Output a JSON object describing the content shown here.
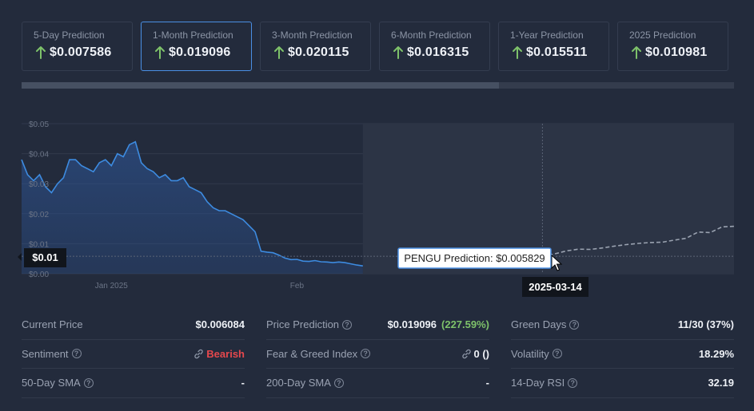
{
  "cards": [
    {
      "label": "5-Day Prediction",
      "value": "$0.007586"
    },
    {
      "label": "1-Month Prediction",
      "value": "$0.019096",
      "active": true
    },
    {
      "label": "3-Month Prediction",
      "value": "$0.020115"
    },
    {
      "label": "6-Month Prediction",
      "value": "$0.016315"
    },
    {
      "label": "1-Year Prediction",
      "value": "$0.015511"
    },
    {
      "label": "2025 Prediction",
      "value": "$0.010981"
    }
  ],
  "progress_fraction": 0.67,
  "colors": {
    "up_arrow": "#7ec26a",
    "line": "#3d8be0",
    "prediction_line": "#9aa2b0",
    "bearish": "#e5484d",
    "active_border": "#4a8fe4"
  },
  "chart_data": {
    "type": "line",
    "y_ticks": [
      "$0.05",
      "$0.04",
      "$0.03",
      "$0.02",
      "$0.01",
      "$0.00"
    ],
    "ylim": [
      0,
      0.05
    ],
    "x_tick_labels": [
      "Jan 2025",
      "Feb"
    ],
    "series": [
      {
        "kind": "historical",
        "x": [
          "2024-12-17",
          "2024-12-18",
          "2024-12-19",
          "2024-12-20",
          "2024-12-21",
          "2024-12-22",
          "2024-12-23",
          "2024-12-24",
          "2024-12-25",
          "2024-12-26",
          "2024-12-27",
          "2024-12-28",
          "2024-12-29",
          "2024-12-30",
          "2024-12-31",
          "2025-01-01",
          "2025-01-02",
          "2025-01-03",
          "2025-01-04",
          "2025-01-05",
          "2025-01-06",
          "2025-01-07",
          "2025-01-08",
          "2025-01-09",
          "2025-01-10",
          "2025-01-11",
          "2025-01-12",
          "2025-01-13",
          "2025-01-14",
          "2025-01-15",
          "2025-01-16",
          "2025-01-17",
          "2025-01-18",
          "2025-01-19",
          "2025-01-20",
          "2025-01-21",
          "2025-01-22",
          "2025-01-23",
          "2025-01-24",
          "2025-01-25",
          "2025-01-26",
          "2025-01-27",
          "2025-01-28",
          "2025-01-29",
          "2025-01-30",
          "2025-01-31",
          "2025-02-01",
          "2025-02-02",
          "2025-02-03",
          "2025-02-04",
          "2025-02-05",
          "2025-02-06",
          "2025-02-07",
          "2025-02-08",
          "2025-02-09",
          "2025-02-10",
          "2025-02-11",
          "2025-02-12"
        ],
        "values": [
          0.038,
          0.033,
          0.031,
          0.033,
          0.029,
          0.027,
          0.03,
          0.032,
          0.038,
          0.038,
          0.036,
          0.035,
          0.034,
          0.037,
          0.038,
          0.036,
          0.04,
          0.039,
          0.043,
          0.044,
          0.037,
          0.035,
          0.034,
          0.032,
          0.033,
          0.031,
          0.031,
          0.032,
          0.029,
          0.028,
          0.027,
          0.024,
          0.022,
          0.021,
          0.021,
          0.02,
          0.019,
          0.018,
          0.016,
          0.014,
          0.0075,
          0.0072,
          0.007,
          0.0062,
          0.0052,
          0.0047,
          0.0048,
          0.0042,
          0.0041,
          0.0044,
          0.004,
          0.0039,
          0.0037,
          0.0039,
          0.0037,
          0.0033,
          0.0029,
          0.0026
        ]
      },
      {
        "kind": "prediction",
        "x": [
          "2025-03-14",
          "2025-03-16",
          "2025-03-18",
          "2025-03-20",
          "2025-03-22",
          "2025-03-24",
          "2025-03-26",
          "2025-03-28",
          "2025-03-30",
          "2025-04-01",
          "2025-04-03",
          "2025-04-05",
          "2025-04-07",
          "2025-04-09",
          "2025-04-11",
          "2025-04-13",
          "2025-04-15"
        ],
        "values": [
          0.005829,
          0.0066,
          0.0076,
          0.0082,
          0.0081,
          0.0086,
          0.0092,
          0.0097,
          0.0101,
          0.0104,
          0.0105,
          0.0112,
          0.0118,
          0.0139,
          0.0137,
          0.0156,
          0.0158
        ]
      }
    ],
    "price_marker_label": "$0.01",
    "tooltip": "PENGU Prediction: $0.005829",
    "crosshair_date_label": "2025-03-14"
  },
  "stats": [
    {
      "label": "Current Price",
      "value": "$0.006084",
      "help": false
    },
    {
      "label": "Price Prediction",
      "value": "$0.019096",
      "extra": "(227.59%)",
      "help": true
    },
    {
      "label": "Green Days",
      "value": "11/30 (37%)",
      "help": true,
      "value_class": "red"
    },
    {
      "label": "Sentiment",
      "value": "Bearish",
      "help": true,
      "value_class": "red",
      "icon": "link-icon"
    },
    {
      "label": "Fear & Greed Index",
      "value": "0 ()",
      "help": true,
      "icon": "link-icon"
    },
    {
      "label": "Volatility",
      "value": "18.29%",
      "help": true
    },
    {
      "label": "50-Day SMA",
      "value": "-",
      "help": true
    },
    {
      "label": "200-Day SMA",
      "value": "-",
      "help": true
    },
    {
      "label": "14-Day RSI",
      "value": "32.19",
      "help": true
    }
  ],
  "help_glyph": "?"
}
